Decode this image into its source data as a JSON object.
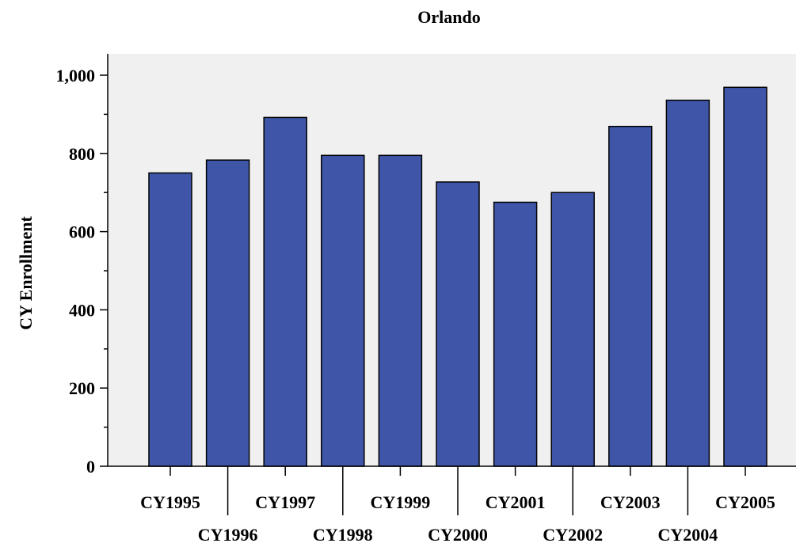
{
  "chart_data": {
    "type": "bar",
    "title": "Orlando",
    "xlabel": "",
    "ylabel": "CY Enrollment",
    "categories": [
      "CY1995",
      "CY1996",
      "CY1997",
      "CY1998",
      "CY1999",
      "CY2000",
      "CY2001",
      "CY2002",
      "CY2003",
      "CY2004",
      "CY2005"
    ],
    "values": [
      750,
      783,
      892,
      795,
      795,
      727,
      675,
      700,
      869,
      936,
      969
    ],
    "ylim": [
      0,
      1000
    ],
    "yticks": [
      0,
      200,
      400,
      600,
      800,
      1000
    ],
    "ytick_labels": [
      "0",
      "200",
      "400",
      "600",
      "800",
      "1,000"
    ],
    "grid": false,
    "legend": "none",
    "colors": {
      "bar_fill": "#3f56a8",
      "plot_background": "#f0f0f0",
      "axis": "#000000"
    }
  }
}
